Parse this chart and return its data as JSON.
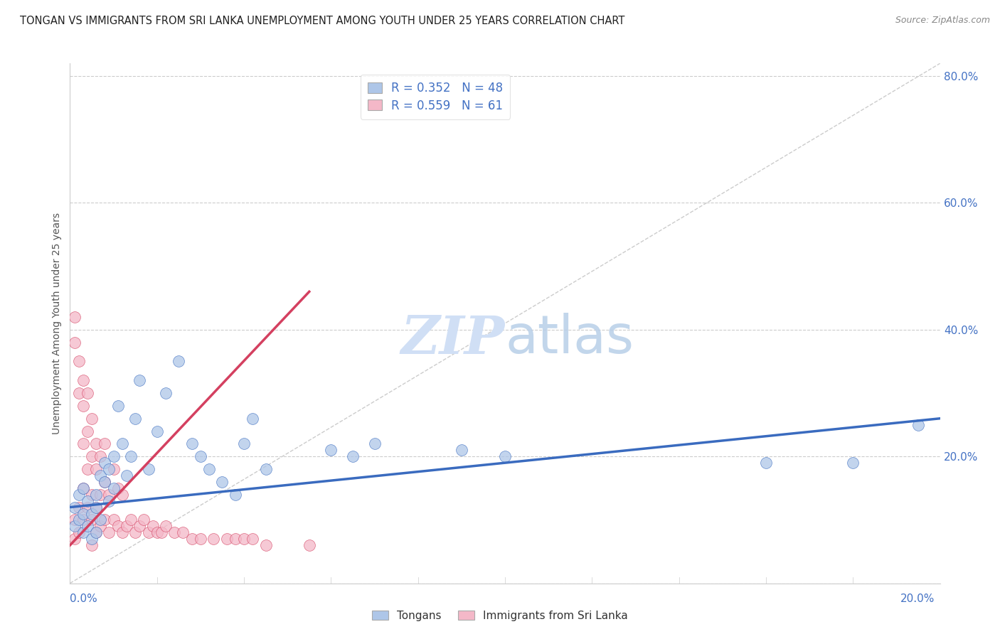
{
  "title": "TONGAN VS IMMIGRANTS FROM SRI LANKA UNEMPLOYMENT AMONG YOUTH UNDER 25 YEARS CORRELATION CHART",
  "source": "Source: ZipAtlas.com",
  "ylabel": "Unemployment Among Youth under 25 years",
  "R1": 0.352,
  "N1": 48,
  "R2": 0.559,
  "N2": 61,
  "color1": "#aec6e8",
  "color2": "#f4b8c8",
  "line1_color": "#3a6bbf",
  "line2_color": "#d44060",
  "ref_line_color": "#cccccc",
  "grid_color": "#cccccc",
  "right_axis_color": "#4472c4",
  "watermark_color": "#d0dff5",
  "title_color": "#222222",
  "source_color": "#888888",
  "label_color": "#555555",
  "series1_label": "Tongans",
  "series2_label": "Immigrants from Sri Lanka",
  "xmin": 0.0,
  "xmax": 0.2,
  "ymin": 0.0,
  "ymax": 0.82,
  "ytick_vals": [
    0.0,
    0.2,
    0.4,
    0.6,
    0.8
  ],
  "ytick_labels": [
    "",
    "20.0%",
    "40.0%",
    "60.0%",
    "80.0%"
  ],
  "tongans_x": [
    0.001,
    0.001,
    0.002,
    0.002,
    0.003,
    0.003,
    0.003,
    0.004,
    0.004,
    0.005,
    0.005,
    0.006,
    0.006,
    0.006,
    0.007,
    0.007,
    0.008,
    0.008,
    0.009,
    0.009,
    0.01,
    0.01,
    0.011,
    0.012,
    0.013,
    0.014,
    0.015,
    0.016,
    0.018,
    0.02,
    0.022,
    0.025,
    0.028,
    0.03,
    0.032,
    0.035,
    0.038,
    0.04,
    0.042,
    0.045,
    0.06,
    0.065,
    0.07,
    0.09,
    0.1,
    0.16,
    0.18,
    0.195
  ],
  "tongans_y": [
    0.09,
    0.12,
    0.1,
    0.14,
    0.08,
    0.11,
    0.15,
    0.09,
    0.13,
    0.07,
    0.11,
    0.12,
    0.08,
    0.14,
    0.17,
    0.1,
    0.16,
    0.19,
    0.13,
    0.18,
    0.15,
    0.2,
    0.28,
    0.22,
    0.17,
    0.2,
    0.26,
    0.32,
    0.18,
    0.24,
    0.3,
    0.35,
    0.22,
    0.2,
    0.18,
    0.16,
    0.14,
    0.22,
    0.26,
    0.18,
    0.21,
    0.2,
    0.22,
    0.21,
    0.2,
    0.19,
    0.19,
    0.25
  ],
  "srilanka_x": [
    0.001,
    0.001,
    0.001,
    0.001,
    0.002,
    0.002,
    0.002,
    0.002,
    0.003,
    0.003,
    0.003,
    0.003,
    0.003,
    0.004,
    0.004,
    0.004,
    0.004,
    0.005,
    0.005,
    0.005,
    0.005,
    0.005,
    0.006,
    0.006,
    0.006,
    0.006,
    0.007,
    0.007,
    0.007,
    0.008,
    0.008,
    0.008,
    0.009,
    0.009,
    0.01,
    0.01,
    0.011,
    0.011,
    0.012,
    0.012,
    0.013,
    0.014,
    0.015,
    0.016,
    0.017,
    0.018,
    0.019,
    0.02,
    0.021,
    0.022,
    0.024,
    0.026,
    0.028,
    0.03,
    0.033,
    0.036,
    0.038,
    0.04,
    0.042,
    0.045,
    0.055
  ],
  "srilanka_y": [
    0.07,
    0.1,
    0.38,
    0.42,
    0.08,
    0.12,
    0.3,
    0.35,
    0.1,
    0.15,
    0.22,
    0.28,
    0.32,
    0.12,
    0.18,
    0.24,
    0.3,
    0.06,
    0.1,
    0.14,
    0.2,
    0.26,
    0.08,
    0.12,
    0.18,
    0.22,
    0.09,
    0.14,
    0.2,
    0.1,
    0.16,
    0.22,
    0.08,
    0.14,
    0.1,
    0.18,
    0.09,
    0.15,
    0.08,
    0.14,
    0.09,
    0.1,
    0.08,
    0.09,
    0.1,
    0.08,
    0.09,
    0.08,
    0.08,
    0.09,
    0.08,
    0.08,
    0.07,
    0.07,
    0.07,
    0.07,
    0.07,
    0.07,
    0.07,
    0.06,
    0.06
  ],
  "blue_trend": [
    0.12,
    0.26
  ],
  "pink_trend_x": [
    0.0,
    0.055
  ],
  "pink_trend_y": [
    0.06,
    0.46
  ]
}
